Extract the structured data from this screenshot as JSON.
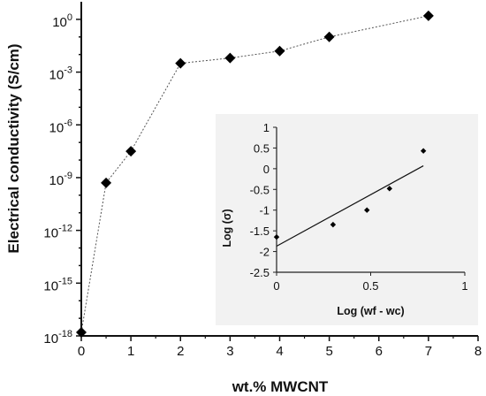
{
  "chart_data": [
    {
      "type": "scatter",
      "xlabel": "wt.% MWCNT",
      "ylabel": "Electrical conductivity (S/cm)",
      "xlim": [
        0,
        8
      ],
      "ylim_log10": [
        -18,
        1
      ],
      "yscale": "log",
      "x_ticks": [
        "0",
        "1",
        "2",
        "3",
        "4",
        "5",
        "6",
        "7",
        "8"
      ],
      "y_tick_labels": [
        {
          "exp": -18,
          "base": "10",
          "sup": "-18"
        },
        {
          "exp": -15,
          "base": "10",
          "sup": "-15"
        },
        {
          "exp": -12,
          "base": "10",
          "sup": "-12"
        },
        {
          "exp": -9,
          "base": "10",
          "sup": "-9"
        },
        {
          "exp": -6,
          "base": "10",
          "sup": "-6"
        },
        {
          "exp": -3,
          "base": "10",
          "sup": "-3"
        },
        {
          "exp": 0,
          "base": "10",
          "sup": "0"
        }
      ],
      "connector": "dotted",
      "marker": "diamond",
      "series": [
        {
          "x": [
            0,
            0.5,
            1,
            2,
            3,
            4,
            5,
            7
          ],
          "y_log10": [
            -17.8,
            -9.3,
            -7.5,
            -2.5,
            -2.2,
            -1.8,
            -1.0,
            0.2
          ]
        }
      ]
    },
    {
      "type": "scatter",
      "inset": true,
      "position": "bottom-right",
      "background": "#f2f2f2",
      "xlabel": "Log (wf - wc)",
      "ylabel": "Log (σ)",
      "xlim": [
        0,
        1
      ],
      "ylim": [
        -2.5,
        1
      ],
      "x_ticks": [
        "0",
        "0.5",
        "1"
      ],
      "y_ticks": [
        "1",
        "0.5",
        "0",
        "-0.5",
        "-1",
        "-1.5",
        "-2",
        "-2.5"
      ],
      "series": [
        {
          "x": [
            0,
            0.3,
            0.48,
            0.6,
            0.78
          ],
          "y": [
            -1.65,
            -1.35,
            -1.0,
            -0.48,
            0.43
          ]
        }
      ],
      "fit_line": {
        "x": [
          0,
          0.78
        ],
        "y": [
          -1.87,
          0.07
        ]
      }
    }
  ]
}
